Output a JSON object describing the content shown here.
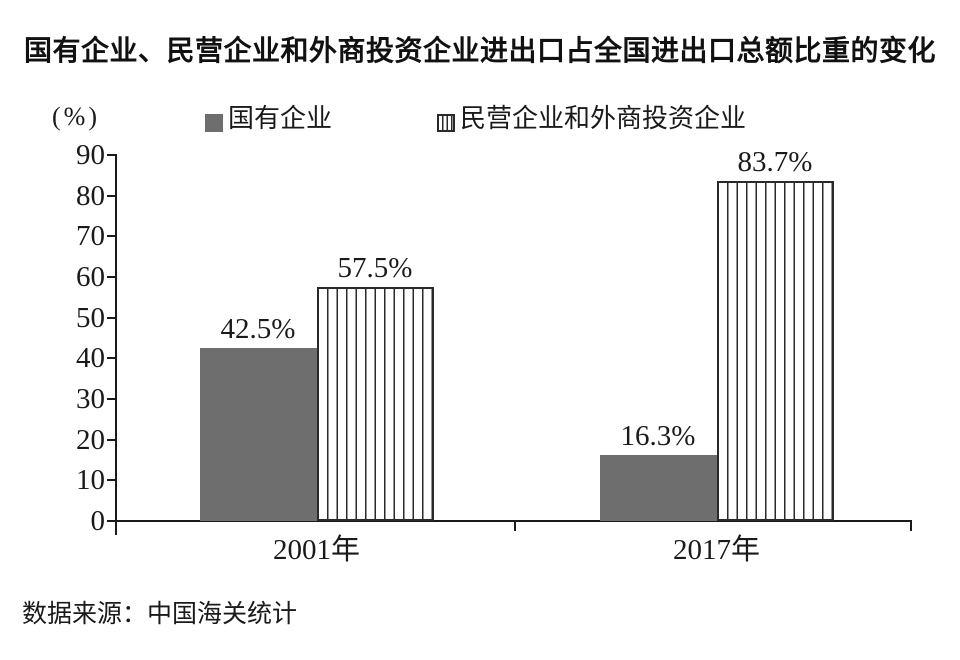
{
  "title": "国有企业、民营企业和外商投资企业进出口占全国进出口总额比重的变化",
  "y_axis_unit": "(%)",
  "legend": {
    "items": [
      {
        "label": "国有企业",
        "swatch": "solid-gray-square"
      },
      {
        "label": "民营企业和外商投资企业",
        "swatch": "vertical-striped-square"
      }
    ]
  },
  "source": "数据来源：中国海关统计",
  "colors": {
    "solid_bar": "#6e6e6e",
    "stripe_line": "#2a2a2a",
    "axis": "#1a1a1a",
    "text": "#1a1a1a",
    "background": "#ffffff"
  },
  "chart_data": {
    "type": "bar",
    "title": "国有企业、民营企业和外商投资企业进出口占全国进出口总额比重的变化",
    "categories": [
      "2001年",
      "2017年"
    ],
    "series": [
      {
        "name": "国有企业",
        "style": "solid",
        "values": [
          42.5,
          16.3
        ],
        "labels": [
          "42.5%",
          "16.3%"
        ]
      },
      {
        "name": "民营企业和外商投资企业",
        "style": "striped",
        "values": [
          57.5,
          83.7
        ],
        "labels": [
          "57.5%",
          "83.7%"
        ]
      }
    ],
    "xlabel": "",
    "ylabel": "(%)",
    "ylim": [
      0,
      90
    ],
    "yticks": [
      0,
      10,
      20,
      30,
      40,
      50,
      60,
      70,
      80,
      90
    ],
    "grid": false,
    "legend_position": "top",
    "source": "数据来源：中国海关统计"
  }
}
